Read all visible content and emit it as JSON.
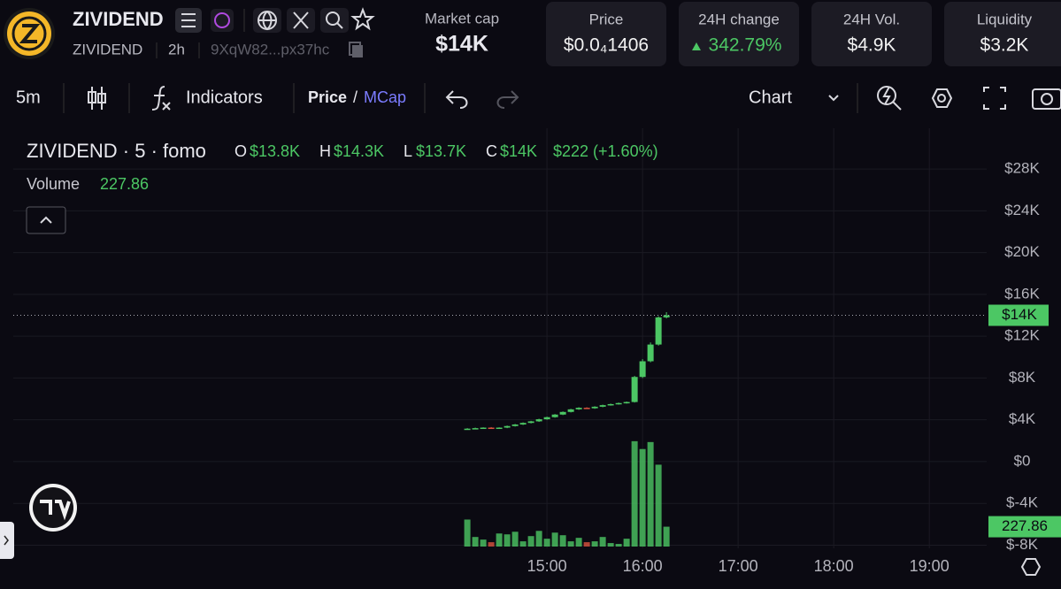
{
  "header": {
    "name": "ZIVIDEND",
    "ticker": "ZIVIDEND",
    "age": "2h",
    "address": "9XqW82...px37hc",
    "market_cap": {
      "label": "Market cap",
      "value": "$14K"
    },
    "stats": [
      {
        "label": "Price",
        "value": "$0.0₄1406"
      },
      {
        "label": "24H change",
        "value": "342.79%"
      },
      {
        "label": "24H Vol.",
        "value": "$4.9K"
      },
      {
        "label": "Liquidity",
        "value": "$3.2K"
      }
    ]
  },
  "toolbar": {
    "interval": "5m",
    "indicators": "Indicators",
    "price": "Price",
    "slash": "/",
    "mcap": "MCap",
    "chart": "Chart"
  },
  "chart_data": {
    "type": "candlestick",
    "legend": {
      "symbol": "ZIVIDEND · 5 · fomo",
      "o": "O",
      "open": "$13.8K",
      "h": "H",
      "high": "$14.3K",
      "l": "L",
      "low": "$13.7K",
      "c": "C",
      "close": "$14K",
      "change": "$222 (+1.60%)"
    },
    "volume_label": "Volume",
    "volume_value": 227.86,
    "x": [
      "14:10",
      "14:15",
      "14:20",
      "14:25",
      "14:30",
      "14:35",
      "14:40",
      "14:45",
      "14:50",
      "14:55",
      "15:00",
      "15:05",
      "15:10",
      "15:15",
      "15:20",
      "15:25",
      "15:30",
      "15:35",
      "15:40",
      "15:45",
      "15:50",
      "15:55",
      "16:00",
      "16:05",
      "16:10",
      "16:15"
    ],
    "open": [
      3100,
      3150,
      3200,
      3250,
      3180,
      3250,
      3400,
      3550,
      3700,
      3850,
      4050,
      4250,
      4500,
      4750,
      5000,
      5150,
      5100,
      5250,
      5400,
      5500,
      5600,
      5700,
      8100,
      9600,
      11200,
      13800
    ],
    "high": [
      3200,
      3250,
      3280,
      3300,
      3280,
      3450,
      3600,
      3750,
      3900,
      4100,
      4300,
      4550,
      4800,
      5050,
      5200,
      5200,
      5300,
      5450,
      5550,
      5650,
      5750,
      8200,
      9800,
      11400,
      13900,
      14300
    ],
    "low": [
      3050,
      3100,
      3150,
      3150,
      3150,
      3200,
      3350,
      3500,
      3650,
      3800,
      4000,
      4200,
      4450,
      4700,
      4950,
      5050,
      5050,
      5200,
      5350,
      5450,
      5550,
      5650,
      8000,
      9500,
      11100,
      13700
    ],
    "close": [
      3150,
      3200,
      3250,
      3180,
      3250,
      3400,
      3550,
      3700,
      3850,
      4050,
      4250,
      4500,
      4750,
      5000,
      5150,
      5100,
      5250,
      5400,
      5500,
      5600,
      5700,
      8100,
      9600,
      11200,
      13800,
      14000
    ],
    "volume": [
      310,
      110,
      80,
      50,
      150,
      140,
      170,
      60,
      120,
      180,
      90,
      160,
      130,
      60,
      100,
      50,
      60,
      110,
      40,
      30,
      90,
      1210,
      1120,
      1200,
      940,
      227.86
    ],
    "up_color": "#4cc764",
    "down_color": "#d9533f",
    "xlim": [
      "09:25",
      "19:36"
    ],
    "xticks": [
      "15:00",
      "16:00",
      "17:00",
      "18:00",
      "19:00"
    ],
    "ylim": [
      -8300,
      31900
    ],
    "yticks": [
      {
        "value": 28000,
        "label": "$28K"
      },
      {
        "value": 24000,
        "label": "$24K"
      },
      {
        "value": 20000,
        "label": "$20K"
      },
      {
        "value": 16000,
        "label": "$16K"
      },
      {
        "value": 12000,
        "label": "$12K"
      },
      {
        "value": 8000,
        "label": "$8K"
      },
      {
        "value": 4000,
        "label": "$4K"
      },
      {
        "value": 0,
        "label": "$0"
      },
      {
        "value": -4000,
        "label": "$-4K"
      },
      {
        "value": -8000,
        "label": "$-8K"
      }
    ],
    "volume_lim": [
      0,
      1300
    ],
    "price_tag": {
      "value": 14000,
      "label": "$14K"
    },
    "grid": true
  }
}
